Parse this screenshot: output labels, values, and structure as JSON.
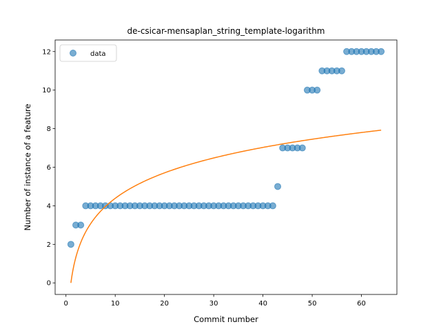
{
  "chart_data": {
    "type": "scatter",
    "title": "de-csicar-mensaplan_string_template-logarithm",
    "xlabel": "Commit number",
    "ylabel": "Number of instance of a feature",
    "xlim": [
      -2.2,
      67.2
    ],
    "ylim": [
      -0.6,
      12.6
    ],
    "xticks": [
      0,
      10,
      20,
      30,
      40,
      50,
      60
    ],
    "yticks": [
      0,
      2,
      4,
      6,
      8,
      10,
      12
    ],
    "grid": false,
    "legend": {
      "placement": "top-left",
      "entries": [
        "data"
      ]
    },
    "series": [
      {
        "name": "data",
        "kind": "scatter",
        "color": "#1f77b4",
        "x": [
          1,
          2,
          3,
          4,
          5,
          6,
          7,
          8,
          9,
          10,
          11,
          12,
          13,
          14,
          15,
          16,
          17,
          18,
          19,
          20,
          21,
          22,
          23,
          24,
          25,
          26,
          27,
          28,
          29,
          30,
          31,
          32,
          33,
          34,
          35,
          36,
          37,
          38,
          39,
          40,
          41,
          42,
          43,
          44,
          45,
          46,
          47,
          48,
          49,
          50,
          51,
          52,
          53,
          54,
          55,
          56,
          57,
          58,
          59,
          60,
          61,
          62,
          63,
          64
        ],
        "y": [
          2,
          3,
          3,
          4,
          4,
          4,
          4,
          4,
          4,
          4,
          4,
          4,
          4,
          4,
          4,
          4,
          4,
          4,
          4,
          4,
          4,
          4,
          4,
          4,
          4,
          4,
          4,
          4,
          4,
          4,
          4,
          4,
          4,
          4,
          4,
          4,
          4,
          4,
          4,
          4,
          4,
          4,
          5,
          7,
          7,
          7,
          7,
          7,
          10,
          10,
          10,
          11,
          11,
          11,
          11,
          11,
          12,
          12,
          12,
          12,
          12,
          12,
          12,
          12
        ]
      },
      {
        "kind": "line",
        "color": "#ff7f0e",
        "fit": {
          "model": "logarithmic",
          "a": 0.0,
          "b": 1.905,
          "x_from": 1,
          "x_to": 64
        }
      }
    ]
  }
}
